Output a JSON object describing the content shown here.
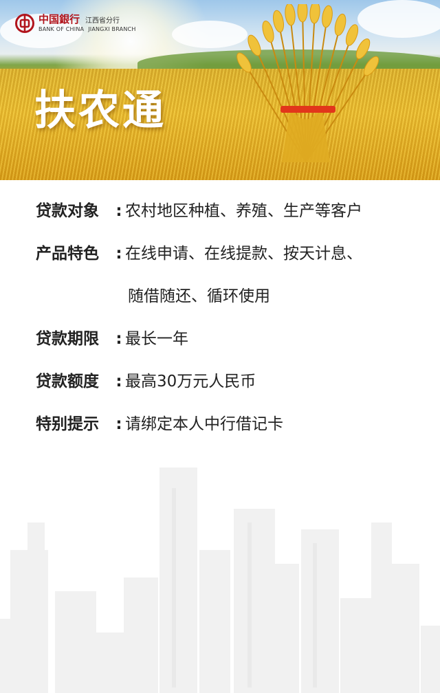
{
  "header": {
    "brand_cn": "中国銀行",
    "brand_en": "BANK OF CHINA",
    "branch_cn": "江西省分行",
    "branch_en": "JIANGXI BRANCH",
    "title": "扶农通"
  },
  "details": [
    {
      "label": "贷款对象",
      "value": "农村地区种植、养殖、生产等客户"
    },
    {
      "label": "产品特色",
      "value": "在线申请、在线提款、按天计息、",
      "value_line2": "随借随还、循环使用"
    },
    {
      "label": "贷款期限",
      "value": "最长一年"
    },
    {
      "label": "贷款额度",
      "value": "最高30万元人民币"
    },
    {
      "label": "特别提示",
      "value": "请绑定本人中行借记卡"
    }
  ],
  "colon": ":",
  "colors": {
    "brand_red": "#b1141c",
    "text": "#222222",
    "skyline": "#f2f2f2",
    "ribbon": "#e2361b"
  }
}
